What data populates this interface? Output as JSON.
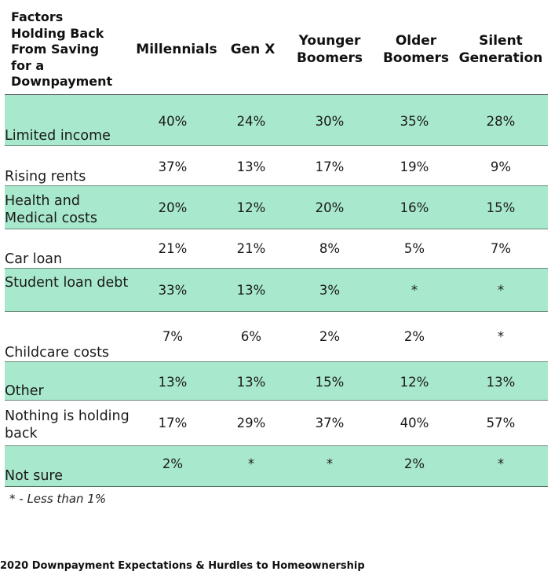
{
  "header": {
    "first": "Factors Holding Back From Saving for a Downpayment",
    "first_lines": [
      "Factors",
      "Holding Back",
      "From Saving",
      "for a",
      "Downpayment"
    ],
    "columns": [
      {
        "lines": [
          "Millennials"
        ]
      },
      {
        "lines": [
          "Gen X"
        ]
      },
      {
        "lines": [
          "Younger",
          "Boomers"
        ]
      },
      {
        "lines": [
          "Older",
          "Boomers"
        ]
      },
      {
        "lines": [
          "Silent",
          "Generation"
        ]
      }
    ]
  },
  "rows": [
    {
      "label": "Limited income",
      "values": [
        "40%",
        "24%",
        "30%",
        "35%",
        "28%"
      ]
    },
    {
      "label": "Rising rents",
      "values": [
        "37%",
        "13%",
        "17%",
        "19%",
        "9%"
      ]
    },
    {
      "label": "Health and Medical costs",
      "values": [
        "20%",
        "12%",
        "20%",
        "16%",
        "15%"
      ]
    },
    {
      "label": "Car loan",
      "values": [
        "21%",
        "21%",
        "8%",
        "5%",
        "7%"
      ]
    },
    {
      "label": "Student loan debt",
      "values": [
        "33%",
        "13%",
        "3%",
        "*",
        "*"
      ]
    },
    {
      "label": "Childcare costs",
      "values": [
        "7%",
        "6%",
        "2%",
        "2%",
        "*"
      ]
    },
    {
      "label": "Other",
      "values": [
        "13%",
        "13%",
        "15%",
        "12%",
        "13%"
      ]
    },
    {
      "label": "Nothing is holding back",
      "values": [
        "17%",
        "29%",
        "37%",
        "40%",
        "57%"
      ]
    },
    {
      "label": "Not sure",
      "values": [
        "2%",
        "*",
        "*",
        "2%",
        "*"
      ]
    }
  ],
  "footnote": "* - Less than 1%",
  "footer": "2020 Downpayment Expectations & Hurdles to Homeownership",
  "colors": {
    "shade": "#a8e8cc",
    "text": "#1a1a1a"
  }
}
